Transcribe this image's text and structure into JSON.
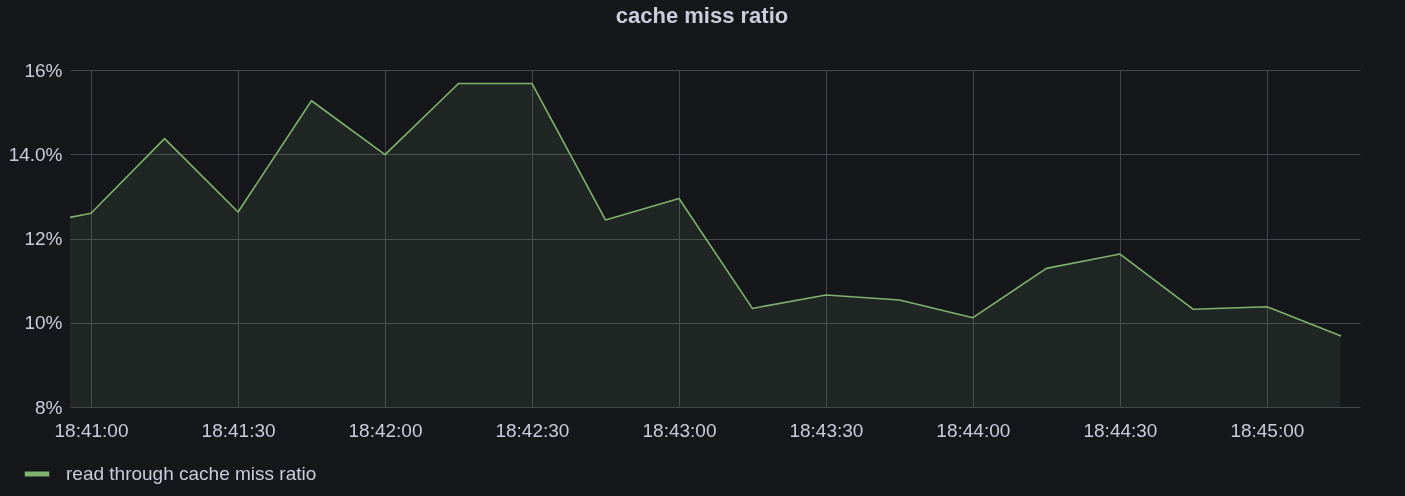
{
  "chart_data": {
    "type": "area",
    "title": "cache miss ratio",
    "x": [
      18.68214,
      18.68333,
      18.6875,
      18.69167,
      18.69583,
      18.7,
      18.70417,
      18.70833,
      18.7125,
      18.71667,
      18.72083,
      18.725,
      18.72917,
      18.73333,
      18.7375,
      18.74167,
      18.74583,
      18.75,
      18.75417
    ],
    "series": [
      {
        "name": "read through cache miss ratio",
        "color": "#7eb26d",
        "values": [
          12.5,
          12.6,
          14.37,
          12.63,
          15.27,
          13.99,
          15.68,
          15.68,
          12.44,
          12.95,
          10.34,
          10.66,
          10.54,
          10.12,
          11.29,
          11.63,
          10.32,
          10.38,
          9.69
        ]
      }
    ],
    "xlim": [
      18.68214,
      18.75528
    ],
    "xticks": [
      {
        "value": 18.68333,
        "label": "18:41:00"
      },
      {
        "value": 18.69167,
        "label": "18:41:30"
      },
      {
        "value": 18.7,
        "label": "18:42:00"
      },
      {
        "value": 18.70833,
        "label": "18:42:30"
      },
      {
        "value": 18.71667,
        "label": "18:43:00"
      },
      {
        "value": 18.725,
        "label": "18:43:30"
      },
      {
        "value": 18.73333,
        "label": "18:44:00"
      },
      {
        "value": 18.74167,
        "label": "18:44:30"
      },
      {
        "value": 18.75,
        "label": "18:45:00"
      }
    ],
    "ylim": [
      8,
      16
    ],
    "yticks": [
      {
        "value": 8,
        "label": "8%"
      },
      {
        "value": 10,
        "label": "10%"
      },
      {
        "value": 12,
        "label": "12%"
      },
      {
        "value": 14,
        "label": "14.0%"
      },
      {
        "value": 16,
        "label": "16%"
      }
    ],
    "grid": true,
    "legend": "bottom",
    "line_style": "solid"
  }
}
